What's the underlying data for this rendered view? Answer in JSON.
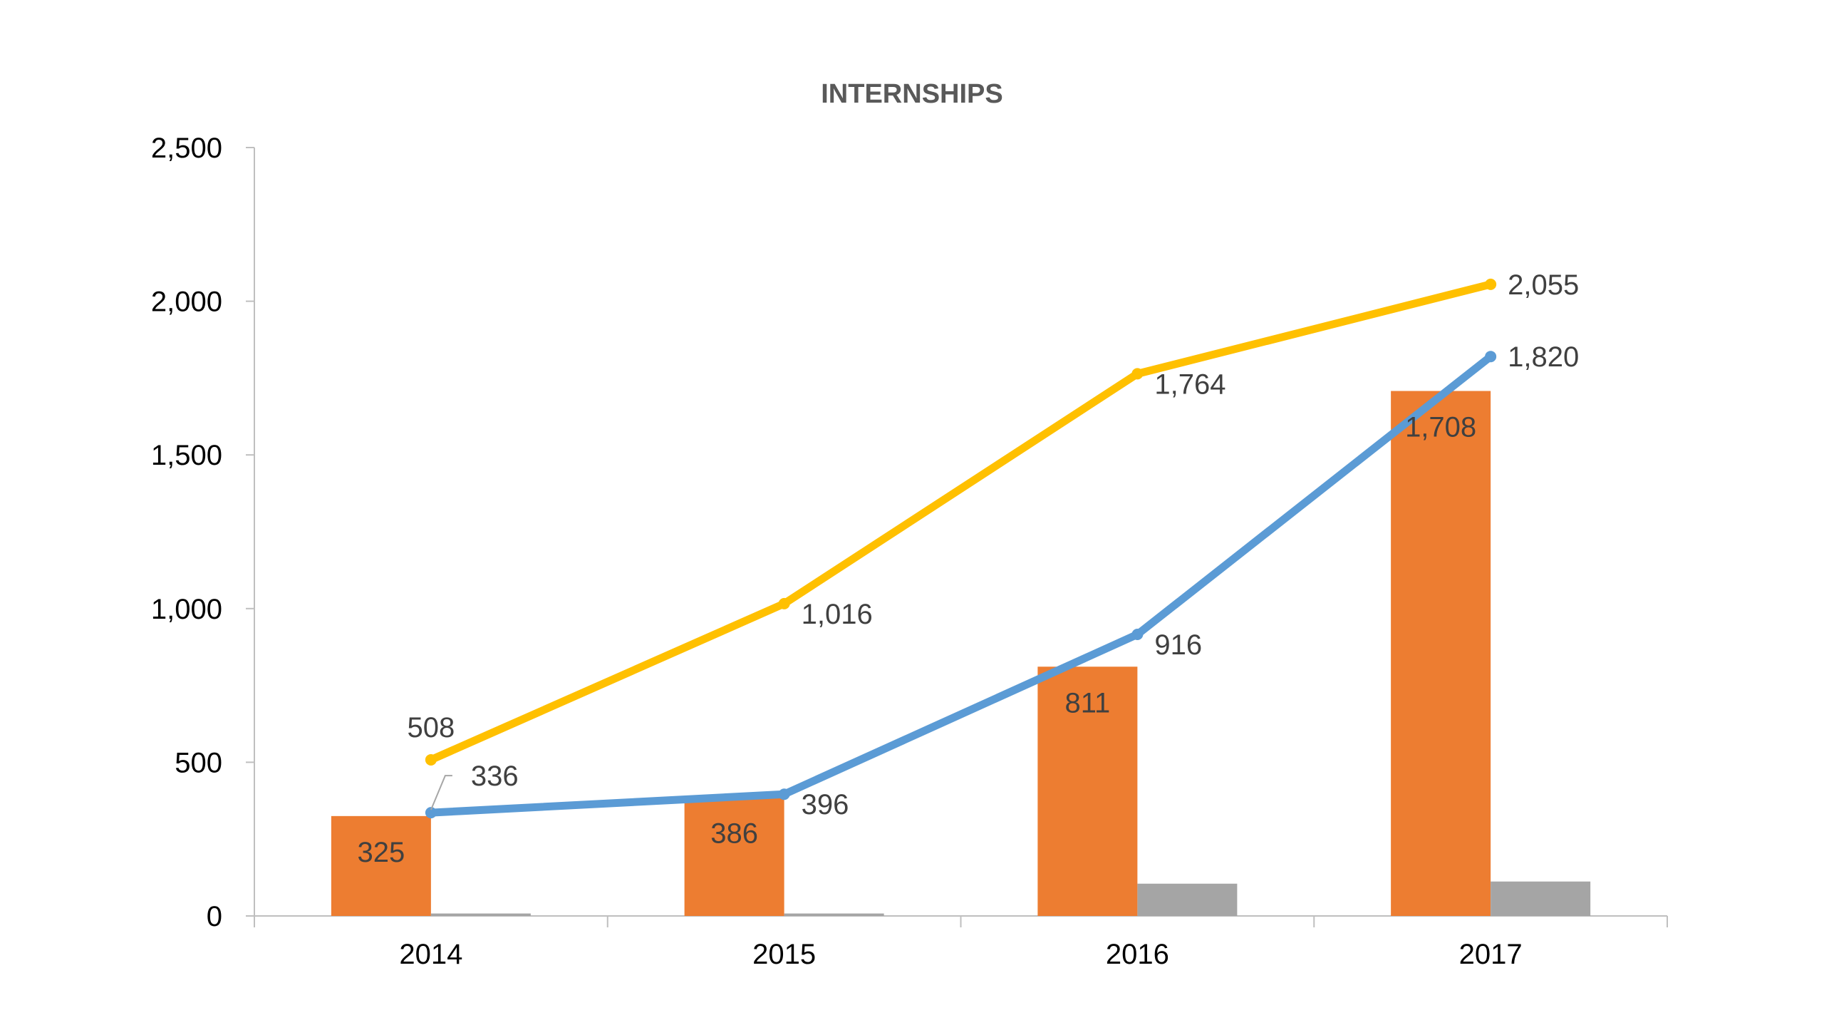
{
  "chart_data": {
    "type": "bar",
    "title": "INTERNSHIPS",
    "categories": [
      "2014",
      "2015",
      "2016",
      "2017"
    ],
    "ylim": [
      0,
      2500
    ],
    "yticks": [
      0,
      500,
      1000,
      1500,
      2000,
      2500
    ],
    "ytick_labels": [
      "0",
      "500",
      "1,000",
      "1,500",
      "2,000",
      "2,500"
    ],
    "grid": false,
    "legend": "none",
    "series": [
      {
        "type": "bar",
        "color": "#ED7D31",
        "values": [
          325,
          386,
          811,
          1708
        ],
        "labels": [
          "325",
          "386",
          "811",
          "1,708"
        ]
      },
      {
        "type": "bar",
        "color": "#A5A5A5",
        "values": [
          8,
          8,
          105,
          112
        ],
        "labels": []
      },
      {
        "type": "line",
        "color": "#5B9BD5",
        "values": [
          336,
          396,
          916,
          1820
        ],
        "labels": [
          "336",
          "396",
          "916",
          "1,820"
        ]
      },
      {
        "type": "line",
        "color": "#FFC000",
        "values": [
          508,
          1016,
          1764,
          2055
        ],
        "labels": [
          "508",
          "1,016",
          "1,764",
          "2,055"
        ]
      }
    ]
  }
}
